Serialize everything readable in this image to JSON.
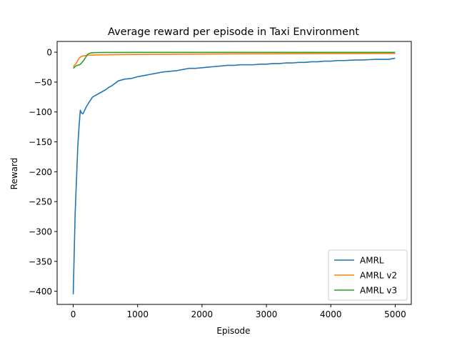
{
  "chart_data": {
    "type": "line",
    "title": "Average reward per episode in Taxi Environment",
    "xlabel": "Episode",
    "ylabel": "Reward",
    "xlim": [
      -250,
      5250
    ],
    "ylim": [
      -422,
      18
    ],
    "xticks": [
      0,
      1000,
      2000,
      3000,
      4000,
      5000
    ],
    "yticks": [
      0,
      -50,
      -100,
      -150,
      -200,
      -250,
      -300,
      -350,
      -400
    ],
    "legend_position": "lower-right",
    "grid": false,
    "series": [
      {
        "name": "AMRL",
        "color": "#1f77b4",
        "x": [
          0,
          10,
          30,
          50,
          70,
          90,
          110,
          130,
          150,
          170,
          200,
          250,
          300,
          350,
          400,
          450,
          500,
          550,
          600,
          650,
          700,
          800,
          900,
          1000,
          1100,
          1200,
          1300,
          1400,
          1500,
          1600,
          1700,
          1800,
          1900,
          2000,
          2100,
          2200,
          2300,
          2400,
          2500,
          2600,
          2700,
          2800,
          2900,
          3000,
          3100,
          3200,
          3300,
          3400,
          3500,
          3600,
          3700,
          3800,
          3900,
          4000,
          4100,
          4200,
          4300,
          4400,
          4500,
          4600,
          4700,
          4800,
          4900,
          5000
        ],
        "y": [
          -405,
          -360,
          -270,
          -215,
          -160,
          -125,
          -97,
          -102,
          -103,
          -99,
          -92,
          -83,
          -75,
          -72,
          -69,
          -66,
          -63,
          -59,
          -56,
          -52,
          -48,
          -45,
          -44,
          -41,
          -39,
          -37,
          -35,
          -33,
          -32,
          -31,
          -29,
          -27,
          -27,
          -26,
          -25,
          -24,
          -23,
          -22,
          -22,
          -21,
          -21,
          -21,
          -20,
          -20,
          -19,
          -19,
          -18,
          -18,
          -17,
          -17,
          -16,
          -16,
          -15,
          -15,
          -14,
          -14,
          -13.5,
          -13,
          -13,
          -12.5,
          -12,
          -12,
          -12,
          -10
        ]
      },
      {
        "name": "AMRL v2",
        "color": "#ff7f0e",
        "x": [
          0,
          20,
          50,
          80,
          100,
          130,
          160,
          200,
          250,
          300,
          400,
          500,
          700,
          1000,
          1500,
          2000,
          2500,
          3000,
          3500,
          4000,
          4500,
          5000
        ],
        "y": [
          -24,
          -22,
          -18,
          -12,
          -9,
          -7,
          -6,
          -5.5,
          -5,
          -4.8,
          -4.5,
          -4.3,
          -4,
          -3.7,
          -3.4,
          -3.1,
          -2.9,
          -2.7,
          -2.5,
          -2.3,
          -2.2,
          -2.1
        ]
      },
      {
        "name": "AMRL v3",
        "color": "#2ca02c",
        "x": [
          0,
          30,
          60,
          100,
          130,
          160,
          190,
          220,
          250,
          280,
          320,
          400,
          500,
          700,
          1000,
          1500,
          2000,
          3000,
          4000,
          5000
        ],
        "y": [
          -27,
          -24,
          -22,
          -21,
          -18,
          -14,
          -9,
          -4,
          -2,
          -1.2,
          -0.8,
          -0.6,
          -0.5,
          -0.4,
          -0.3,
          -0.3,
          -0.3,
          -0.3,
          -0.3,
          -0.3
        ]
      }
    ]
  }
}
